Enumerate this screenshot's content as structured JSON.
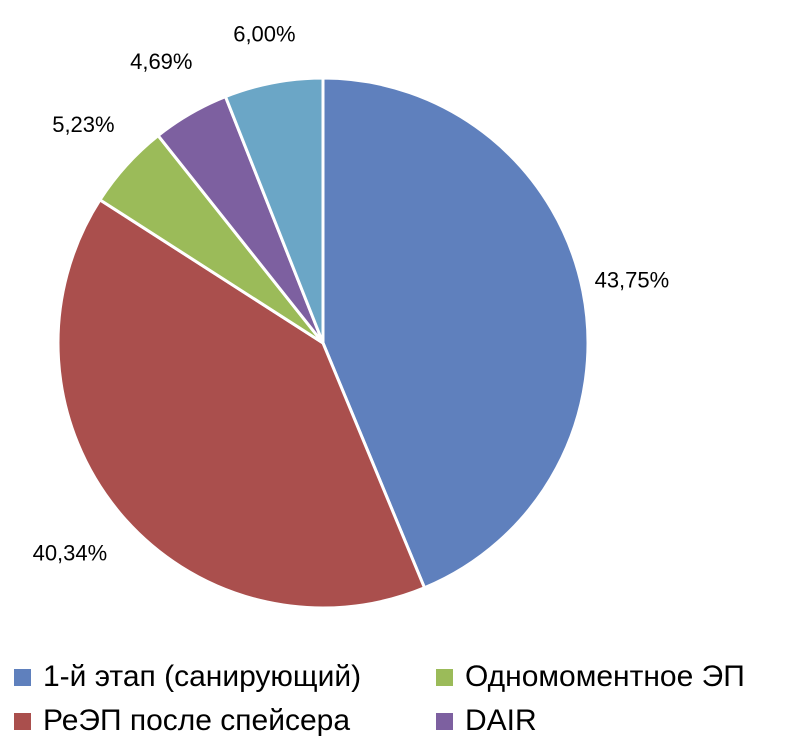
{
  "chart_data": {
    "type": "pie",
    "title": "",
    "categories": [
      "1-й этап (санирующий)",
      "РеЭП после спейсера",
      "Одномоментное ЭП",
      "DAIR",
      ""
    ],
    "values": [
      43.75,
      40.34,
      5.23,
      4.69,
      6.0
    ],
    "data_labels": [
      "43,75%",
      "40,34%",
      "5,23%",
      "4,69%",
      "6,00%"
    ],
    "colors": [
      "#5f80bd",
      "#aa4f4d",
      "#9bbb59",
      "#7d60a0",
      "#6ba6c6"
    ],
    "legend_position": "bottom"
  },
  "legend": [
    {
      "label": "1-й этап (санирующий)",
      "color": "#5f80bd"
    },
    {
      "label": "Одномоментное ЭП",
      "color": "#9bbb59"
    },
    {
      "label": "РеЭП после спейсера",
      "color": "#aa4f4d"
    },
    {
      "label": "DAIR",
      "color": "#7d60a0"
    }
  ]
}
